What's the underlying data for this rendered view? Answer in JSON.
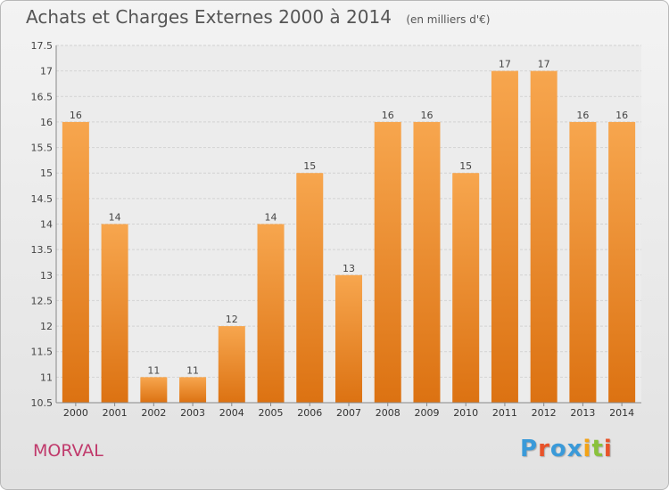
{
  "header": {
    "title": "Achats et Charges Externes 2000 à 2014",
    "subtitle": "(en milliers d'€)"
  },
  "footer": {
    "commune": "MORVAL",
    "logo": [
      "P",
      "r",
      "o",
      "x",
      "i",
      "t",
      "i"
    ]
  },
  "colors": {
    "bar_top": "#f7a64e",
    "bar_bottom": "#dc7212",
    "logo": [
      "#3a9ad9",
      "#e8532a",
      "#3a9ad9",
      "#3a9ad9",
      "#f3a317",
      "#8ac23c",
      "#e8532a"
    ]
  },
  "chart_data": {
    "type": "bar",
    "categories": [
      "2000",
      "2001",
      "2002",
      "2003",
      "2004",
      "2005",
      "2006",
      "2007",
      "2008",
      "2009",
      "2010",
      "2011",
      "2012",
      "2013",
      "2014"
    ],
    "values": [
      16,
      14,
      11,
      11,
      12,
      14,
      15,
      13,
      16,
      16,
      15,
      17,
      17,
      16,
      16
    ],
    "labels": [
      "16",
      "14",
      "11",
      "11",
      "12",
      "14",
      "15",
      "13",
      "16",
      "16",
      "15",
      "17",
      "17",
      "16",
      "16"
    ],
    "title": "Achats et Charges Externes 2000 à 2014",
    "subtitle": "(en milliers d'€)",
    "xlabel": "",
    "ylabel": "",
    "ylim": [
      10.5,
      17.5
    ],
    "yticks": [
      10.5,
      11,
      11.5,
      12,
      12.5,
      13,
      13.5,
      14,
      14.5,
      15,
      15.5,
      16,
      16.5,
      17,
      17.5
    ],
    "ytick_labels": [
      "10.5",
      "11",
      "11.5",
      "12",
      "12.5",
      "13",
      "13.5",
      "14",
      "14.5",
      "15",
      "15.5",
      "16",
      "16.5",
      "17",
      "17.5"
    ],
    "grid": true,
    "legend": "none"
  }
}
